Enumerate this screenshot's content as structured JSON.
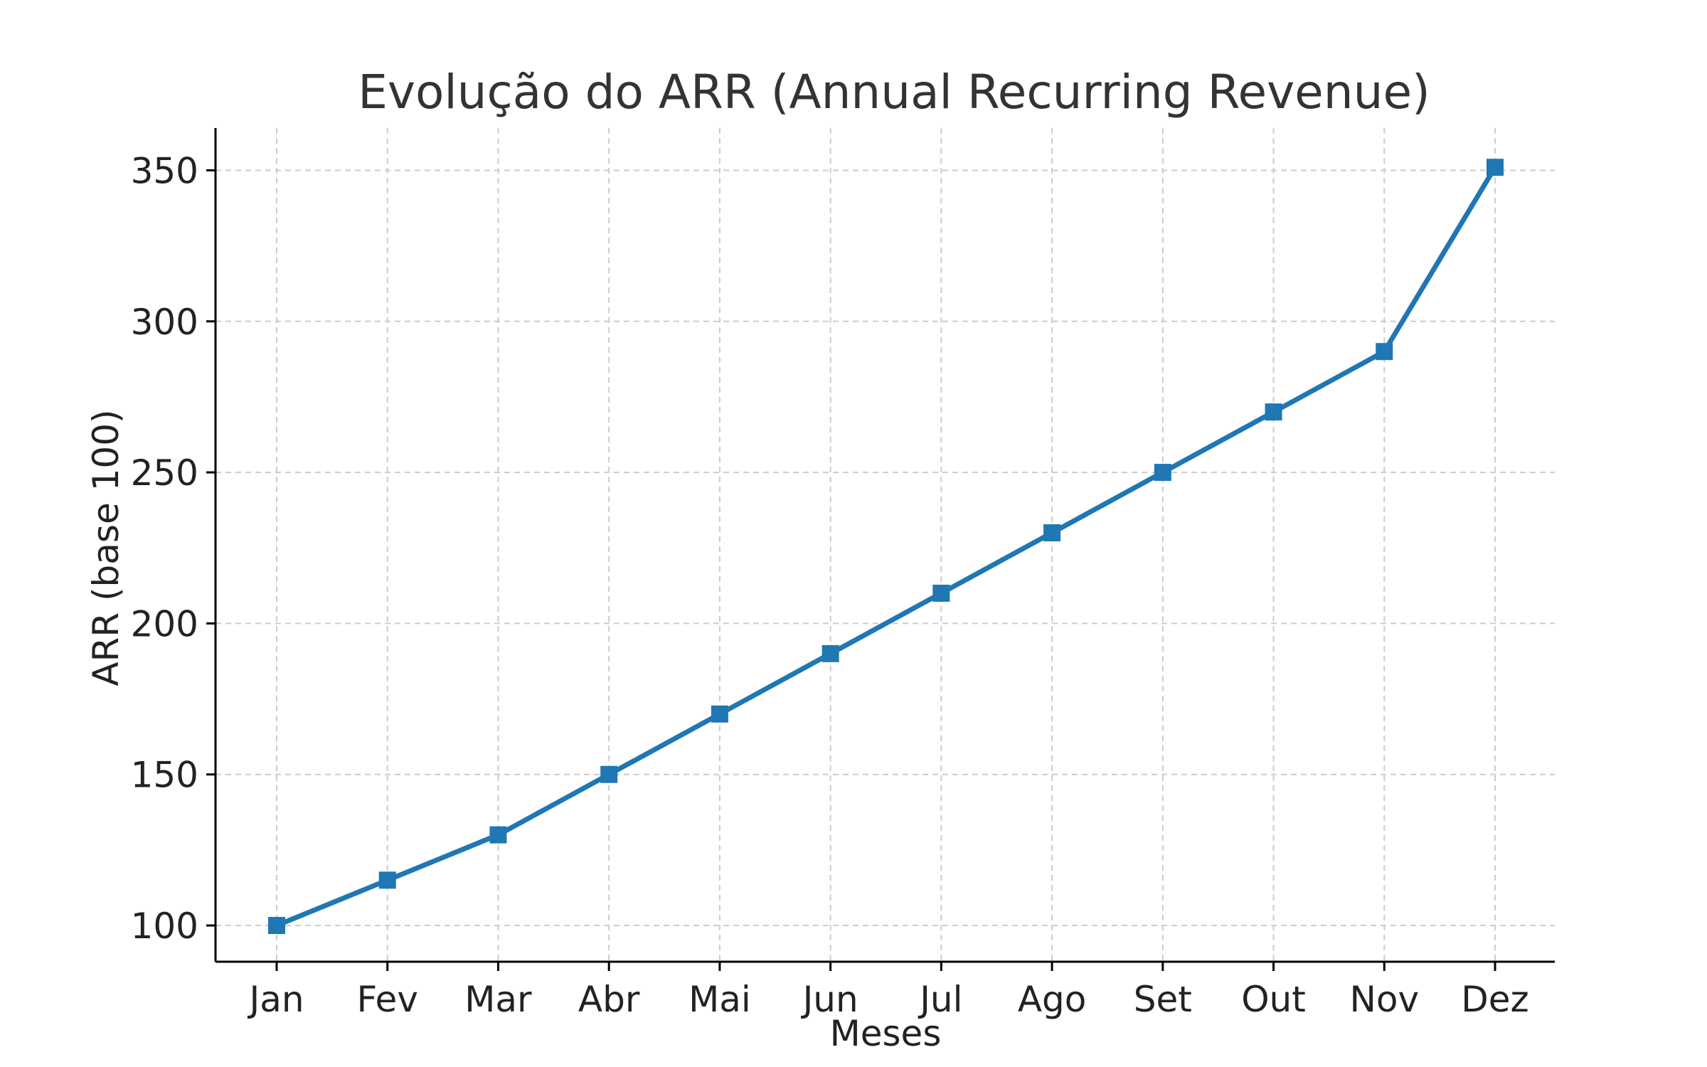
{
  "chart_data": {
    "type": "line",
    "title": "Evolução do ARR (Annual Recurring Revenue)",
    "xlabel": "Meses",
    "ylabel": "ARR (base 100)",
    "categories": [
      "Jan",
      "Fev",
      "Mar",
      "Abr",
      "Mai",
      "Jun",
      "Jul",
      "Ago",
      "Set",
      "Out",
      "Nov",
      "Dez"
    ],
    "series": [
      {
        "values": [
          100,
          115,
          130,
          150,
          170,
          190,
          210,
          230,
          250,
          270,
          290,
          351
        ]
      }
    ],
    "yticks": [
      100,
      150,
      200,
      250,
      300,
      350
    ],
    "ylim": [
      88,
      364
    ],
    "grid": true,
    "marker": "square",
    "colors": {
      "series": "#1f77b4",
      "grid": "#cccccc",
      "axis": "#000000"
    }
  }
}
